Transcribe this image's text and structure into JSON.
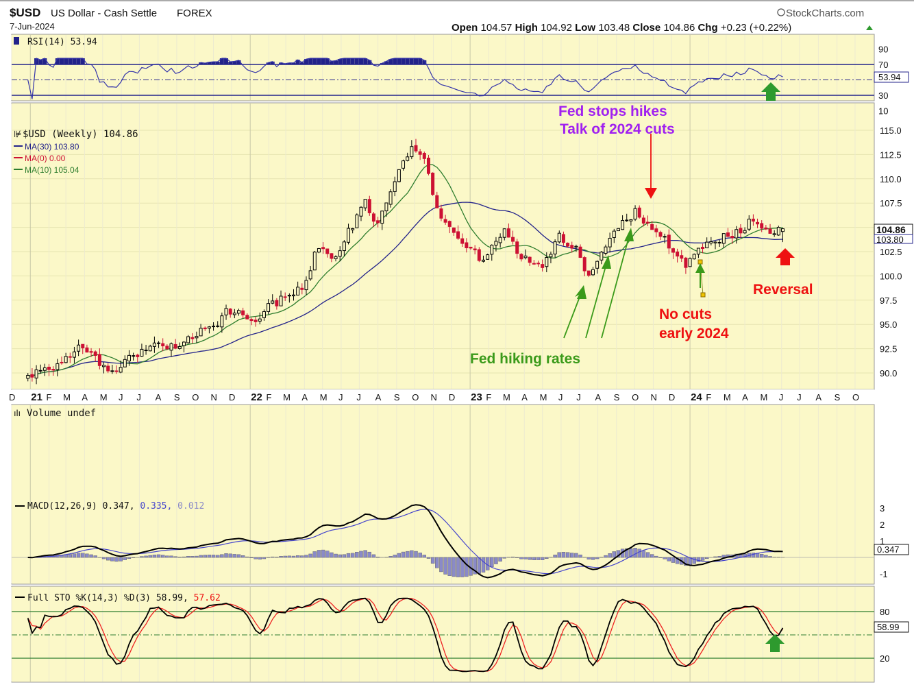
{
  "header": {
    "symbol": "$USD",
    "name": "US Dollar - Cash Settle",
    "exchange": "FOREX",
    "date": "7-Jun-2024",
    "brand": "StockCharts.com",
    "brand_icon": "copyright-icon",
    "ohlc": {
      "open_label": "Open",
      "open": "104.57",
      "high_label": "High",
      "high": "104.92",
      "low_label": "Low",
      "low": "103.48",
      "close_label": "Close",
      "close": "104.86",
      "chg_label": "Chg",
      "chg": "+0.23 (+0.22%)"
    }
  },
  "colors": {
    "panel_bg": "#fbf8c8",
    "up_candle": "#000000",
    "down_candle": "#cc1133",
    "ma30": "#22228a",
    "ma10": "#2e7d2e",
    "rsi": "#3333aa",
    "annotation_green": "#3a9a1a",
    "annotation_red": "#ee1111",
    "annotation_purple": "#a020f0",
    "macd_hist": "#8a8ac8"
  },
  "rsi_panel": {
    "legend": "RSI(14) 53.94",
    "y_ticks": [
      "90",
      "70",
      "30",
      "10"
    ],
    "last_label": "53.94"
  },
  "price_panel": {
    "legend_title": "$USD (Weekly) 104.86",
    "legend_ma30": "MA(30) 103.80",
    "legend_ma0": "MA(0) 0.00",
    "legend_ma10": "MA(10) 105.04",
    "y_ticks": [
      "115.0",
      "112.5",
      "110.0",
      "107.5",
      "105.0",
      "102.5",
      "100.0",
      "97.5",
      "95.0",
      "92.5",
      "90.0"
    ],
    "last_close_label": "104.86",
    "last_ma_label": "103.80"
  },
  "annotations": {
    "fed_stops_line1": "Fed stops hikes",
    "fed_stops_line2": "Talk of 2024 cuts",
    "fed_hiking": "Fed hiking rates",
    "no_cuts_line1": "No cuts",
    "no_cuts_line2": "early 2024",
    "reversal": "Reversal"
  },
  "x_axis": {
    "labels": [
      "D",
      "21",
      "F",
      "M",
      "A",
      "M",
      "J",
      "J",
      "A",
      "S",
      "O",
      "N",
      "D",
      "22",
      "F",
      "M",
      "A",
      "M",
      "J",
      "J",
      "A",
      "S",
      "O",
      "N",
      "D",
      "23",
      "F",
      "M",
      "A",
      "M",
      "J",
      "J",
      "A",
      "S",
      "O",
      "N",
      "D",
      "24",
      "F",
      "M",
      "A",
      "M",
      "J",
      "J",
      "A",
      "S",
      "O"
    ]
  },
  "volume_panel": {
    "legend": "Volume undef"
  },
  "macd_panel": {
    "legend_prefix": "MACD(12,26,9) 0.347,",
    "legend_signal": "0.335,",
    "legend_hist": "0.012",
    "y_ticks": [
      "3",
      "2",
      "1",
      "-1"
    ],
    "last_label": "0.347"
  },
  "sto_panel": {
    "legend_prefix": "Full STO %K(14,3) %D(3) 58.99,",
    "legend_d": "57.62",
    "y_ticks": [
      "80",
      "20"
    ],
    "last_label": "58.99"
  },
  "chart_data": {
    "type": "candlestick",
    "title": "$USD US Dollar - Cash Settle FOREX",
    "period": "Weekly",
    "x_range": [
      "2020-12",
      "2024-10"
    ],
    "ylim_price": [
      88.5,
      116.5
    ],
    "series": [
      {
        "name": "MA(30)",
        "last": 103.8
      },
      {
        "name": "MA(10)",
        "last": 105.04
      },
      {
        "name": "RSI(14)",
        "last": 53.94
      },
      {
        "name": "MACD(12,26,9)",
        "last": 0.347,
        "signal": 0.335,
        "histogram": 0.012
      },
      {
        "name": "Full STO %K(14,3) %D(3)",
        "k": 58.99,
        "d": 57.62
      }
    ],
    "close_anchors": [
      {
        "date": "2020-12-28",
        "v": 90.2
      },
      {
        "date": "2021-01-04",
        "v": 89.9
      },
      {
        "date": "2021-01-25",
        "v": 90.5
      },
      {
        "date": "2021-02-22",
        "v": 90.9
      },
      {
        "date": "2021-03-29",
        "v": 93.0
      },
      {
        "date": "2021-04-26",
        "v": 91.2
      },
      {
        "date": "2021-05-24",
        "v": 90.0
      },
      {
        "date": "2021-06-14",
        "v": 91.5
      },
      {
        "date": "2021-07-05",
        "v": 92.3
      },
      {
        "date": "2021-08-09",
        "v": 93.0
      },
      {
        "date": "2021-09-06",
        "v": 92.6
      },
      {
        "date": "2021-10-04",
        "v": 94.0
      },
      {
        "date": "2021-11-01",
        "v": 94.7
      },
      {
        "date": "2021-11-22",
        "v": 96.3
      },
      {
        "date": "2021-12-13",
        "v": 96.2
      },
      {
        "date": "2022-01-10",
        "v": 95.4
      },
      {
        "date": "2022-01-31",
        "v": 96.8
      },
      {
        "date": "2022-02-28",
        "v": 97.8
      },
      {
        "date": "2022-03-28",
        "v": 98.6
      },
      {
        "date": "2022-04-25",
        "v": 103.2
      },
      {
        "date": "2022-05-23",
        "v": 101.6
      },
      {
        "date": "2022-06-13",
        "v": 104.5
      },
      {
        "date": "2022-07-11",
        "v": 107.6
      },
      {
        "date": "2022-08-01",
        "v": 105.3
      },
      {
        "date": "2022-08-29",
        "v": 109.5
      },
      {
        "date": "2022-09-26",
        "v": 113.5
      },
      {
        "date": "2022-10-17",
        "v": 112.0
      },
      {
        "date": "2022-11-07",
        "v": 106.7
      },
      {
        "date": "2022-12-05",
        "v": 104.5
      },
      {
        "date": "2022-12-26",
        "v": 103.2
      },
      {
        "date": "2023-01-23",
        "v": 101.6
      },
      {
        "date": "2023-02-27",
        "v": 104.5
      },
      {
        "date": "2023-03-27",
        "v": 102.0
      },
      {
        "date": "2023-05-01",
        "v": 101.3
      },
      {
        "date": "2023-05-29",
        "v": 104.0
      },
      {
        "date": "2023-06-26",
        "v": 102.7
      },
      {
        "date": "2023-07-17",
        "v": 99.9
      },
      {
        "date": "2023-08-14",
        "v": 103.3
      },
      {
        "date": "2023-09-11",
        "v": 105.3
      },
      {
        "date": "2023-10-02",
        "v": 106.5
      },
      {
        "date": "2023-10-30",
        "v": 105.0
      },
      {
        "date": "2023-11-27",
        "v": 103.2
      },
      {
        "date": "2023-12-25",
        "v": 101.2
      },
      {
        "date": "2024-01-29",
        "v": 103.5
      },
      {
        "date": "2024-02-26",
        "v": 104.0
      },
      {
        "date": "2024-03-25",
        "v": 104.5
      },
      {
        "date": "2024-04-15",
        "v": 106.0
      },
      {
        "date": "2024-05-13",
        "v": 104.6
      },
      {
        "date": "2024-06-07",
        "v": 104.86
      }
    ]
  }
}
